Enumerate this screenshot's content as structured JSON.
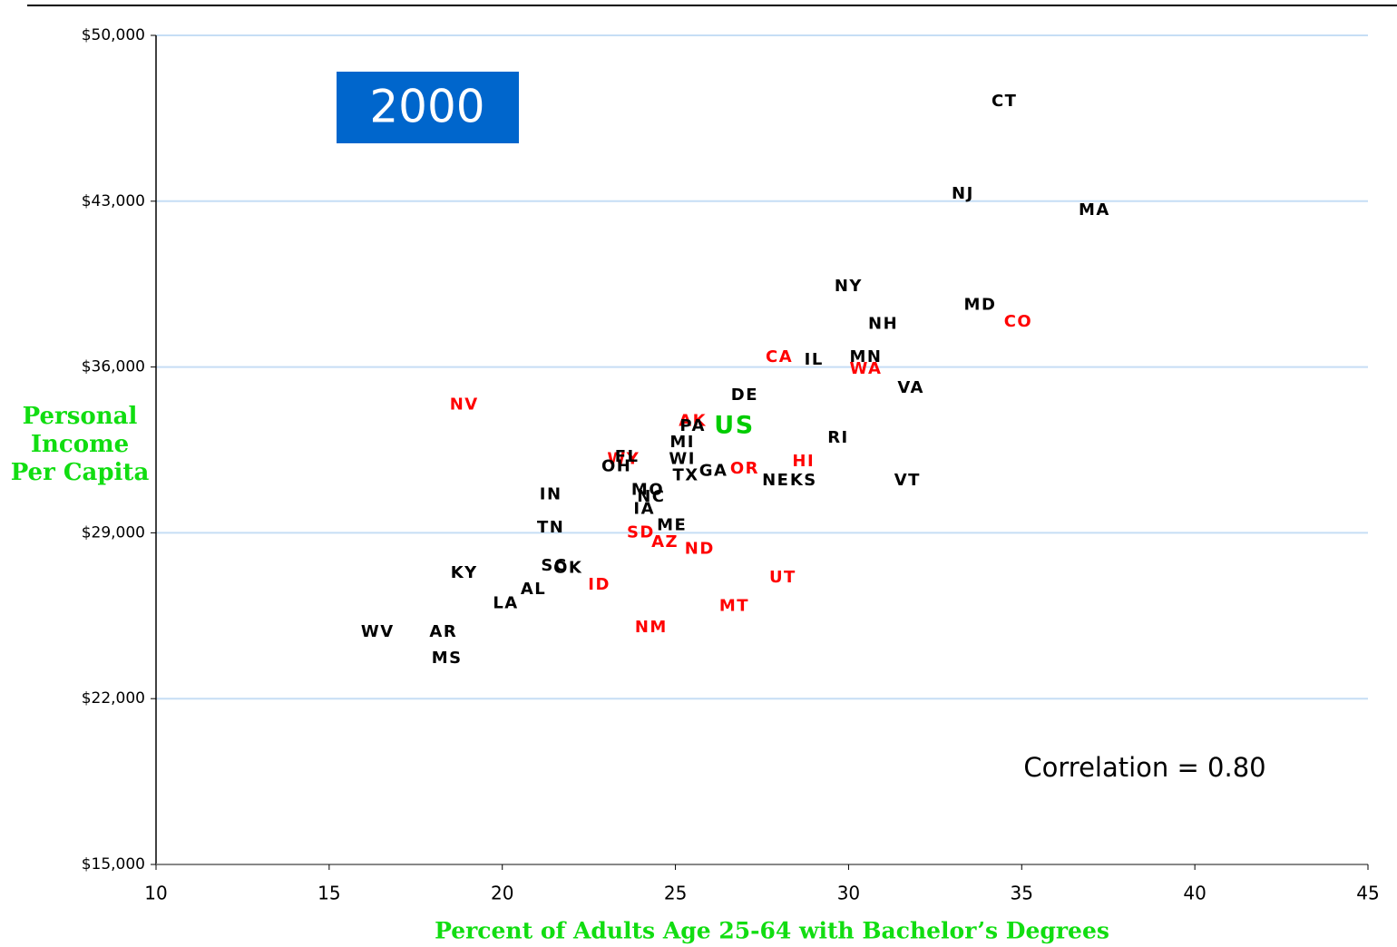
{
  "chart_data": {
    "type": "scatter",
    "title": "2000",
    "xlabel": "Percent of Adults Age 25-64 with Bachelor’s Degrees",
    "ylabel": "Personal Income Per Capita",
    "annotation": "Correlation = 0.80",
    "xlim": [
      10,
      45
    ],
    "xticks": [
      10,
      15,
      20,
      25,
      30,
      35,
      40,
      45
    ],
    "ylim": [
      15000,
      50000
    ],
    "yticks": [
      {
        "value": 15000,
        "label": "$15,000"
      },
      {
        "value": 22000,
        "label": "$22,000"
      },
      {
        "value": 29000,
        "label": "$29,000"
      },
      {
        "value": 36000,
        "label": "$36,000"
      },
      {
        "value": 43000,
        "label": "$43,000"
      },
      {
        "value": 50000,
        "label": "$50,000"
      }
    ],
    "grid": true,
    "labels": [
      "CT",
      "NJ",
      "MA",
      "NY",
      "MD",
      "CO",
      "NH",
      "CA",
      "IL",
      "MN",
      "WA",
      "VA",
      "DE",
      "NV",
      "AK",
      "US",
      "PA",
      "RI",
      "MI",
      "VT",
      "WY",
      "FL",
      "OH",
      "WI",
      "HI",
      "TX",
      "GA",
      "OR",
      "NE",
      "KS",
      "IN",
      "MO",
      "NC",
      "IA",
      "TN",
      "ME",
      "SD",
      "AZ",
      "ND",
      "SC",
      "OK",
      "KY",
      "ID",
      "UT",
      "AL",
      "LA",
      "MT",
      "NM",
      "WV",
      "AR",
      "MS"
    ],
    "x": [
      34.5,
      33.3,
      37.1,
      30.0,
      33.8,
      34.9,
      31.0,
      28.0,
      29.0,
      30.5,
      30.5,
      31.8,
      27.0,
      18.9,
      25.5,
      26.7,
      25.5,
      29.7,
      25.2,
      31.7,
      23.5,
      23.6,
      23.3,
      25.2,
      28.7,
      25.3,
      26.1,
      27.0,
      27.9,
      28.7,
      21.4,
      24.2,
      24.3,
      24.1,
      21.4,
      24.9,
      24.0,
      24.7,
      25.7,
      21.5,
      21.9,
      18.9,
      22.8,
      28.1,
      20.9,
      20.1,
      26.7,
      24.3,
      16.4,
      18.3,
      18.4
    ],
    "values": [
      47200,
      43300,
      42600,
      39400,
      38600,
      37900,
      37800,
      36400,
      36300,
      36400,
      35900,
      35100,
      34800,
      34400,
      33700,
      33500,
      33500,
      33000,
      32800,
      31200,
      32100,
      32200,
      31800,
      32100,
      32000,
      31400,
      31600,
      31700,
      31200,
      31200,
      30600,
      30800,
      30500,
      30000,
      29200,
      29300,
      29000,
      28600,
      28300,
      27600,
      27500,
      27300,
      26800,
      27100,
      26600,
      26000,
      25900,
      25000,
      24800,
      24800,
      23700
    ],
    "colors": [
      "#000000",
      "#000000",
      "#000000",
      "#000000",
      "#000000",
      "#ff0000",
      "#000000",
      "#ff0000",
      "#000000",
      "#000000",
      "#ff0000",
      "#000000",
      "#000000",
      "#ff0000",
      "#ff0000",
      "#00cc00",
      "#000000",
      "#000000",
      "#000000",
      "#000000",
      "#ff0000",
      "#000000",
      "#000000",
      "#000000",
      "#ff0000",
      "#000000",
      "#000000",
      "#ff0000",
      "#000000",
      "#000000",
      "#000000",
      "#000000",
      "#000000",
      "#000000",
      "#000000",
      "#000000",
      "#ff0000",
      "#ff0000",
      "#ff0000",
      "#000000",
      "#000000",
      "#000000",
      "#ff0000",
      "#ff0000",
      "#000000",
      "#000000",
      "#ff0000",
      "#ff0000",
      "#000000",
      "#000000",
      "#000000"
    ]
  }
}
